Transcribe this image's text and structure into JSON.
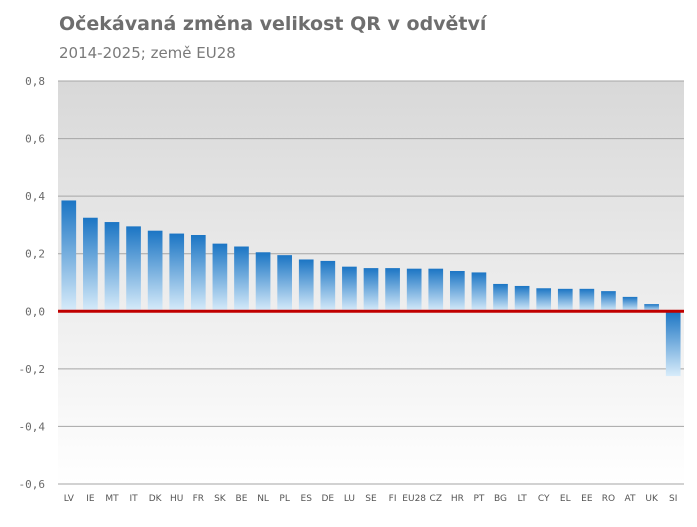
{
  "chart_data": {
    "type": "bar",
    "title": "Očekávaná změna velikost QR v odvětví",
    "subtitle": "2014-2025; země EU28",
    "categories": [
      "LV",
      "IE",
      "MT",
      "IT",
      "DK",
      "HU",
      "FR",
      "SK",
      "BE",
      "NL",
      "PL",
      "ES",
      "DE",
      "LU",
      "SE",
      "FI",
      "EU28",
      "CZ",
      "HR",
      "PT",
      "BG",
      "LT",
      "CY",
      "EL",
      "EE",
      "RO",
      "AT",
      "UK",
      "SI"
    ],
    "values": [
      0.385,
      0.325,
      0.31,
      0.295,
      0.28,
      0.27,
      0.265,
      0.235,
      0.225,
      0.205,
      0.195,
      0.18,
      0.175,
      0.155,
      0.15,
      0.15,
      0.148,
      0.148,
      0.14,
      0.135,
      0.095,
      0.088,
      0.08,
      0.078,
      0.078,
      0.07,
      0.05,
      0.025,
      -0.225
    ],
    "ylim": [
      -0.6,
      0.8
    ],
    "yticks": [
      0.8,
      0.6,
      0.4,
      0.2,
      0.0,
      -0.2,
      -0.4,
      -0.6
    ],
    "ytick_labels": [
      "0,8",
      "0,6",
      "0,4",
      "0,2",
      "0,0",
      "-0,2",
      "-0,4",
      "-0,6"
    ],
    "xlabel": "",
    "ylabel": "",
    "grid": true,
    "legend": "none",
    "colors": {
      "bar_top": "#1b75c4",
      "bar_bottom": "#d8ecfa",
      "zero_line": "#c00000",
      "plot_bg_top": "#d8d8d8",
      "plot_bg_bottom": "#ffffff",
      "grid": "#a6a6a6"
    }
  }
}
